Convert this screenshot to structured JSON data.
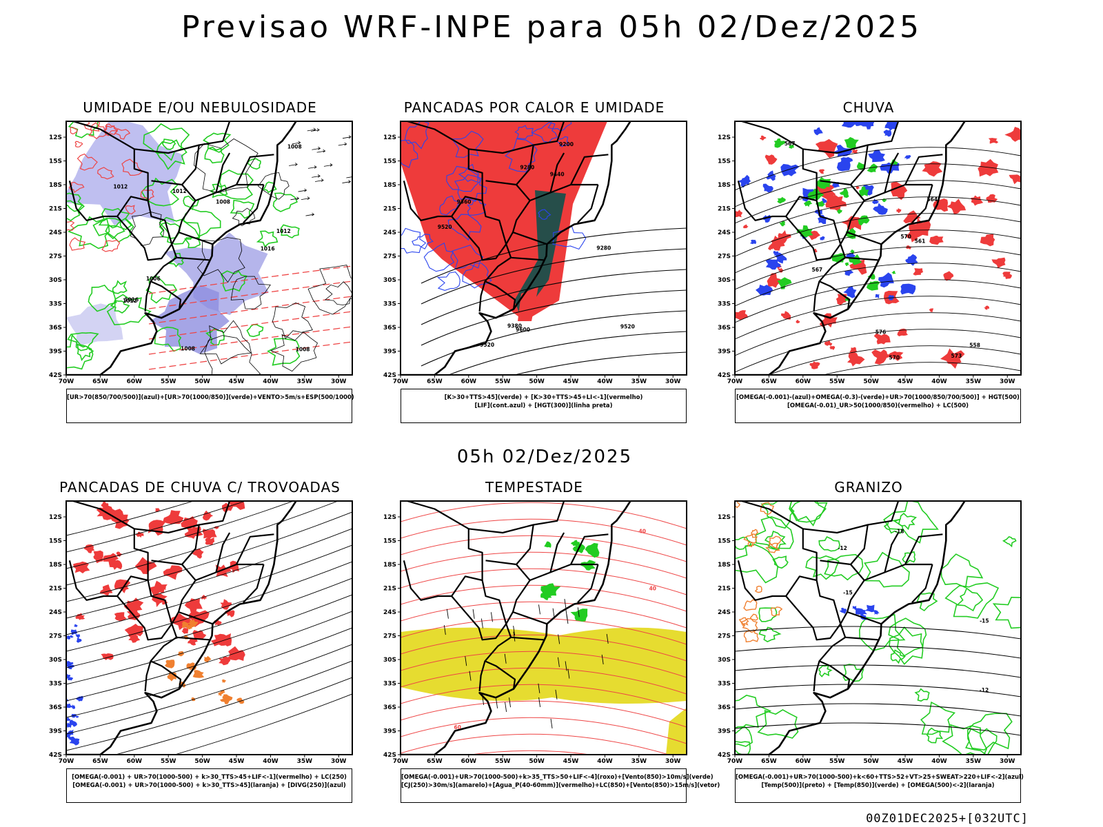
{
  "header": {
    "title": "Previsao WRF-INPE  para 05h 02/Dez/2025",
    "mid_title": "05h 02/Dez/2025"
  },
  "footer": "00Z01DEC2025+[032UTC]",
  "axes": {
    "lat_ticks": [
      "12S",
      "15S",
      "18S",
      "21S",
      "24S",
      "27S",
      "30S",
      "33S",
      "36S",
      "39S",
      "42S"
    ],
    "lon_ticks": [
      "70W",
      "65W",
      "60W",
      "55W",
      "50W",
      "45W",
      "40W",
      "35W",
      "30W"
    ]
  },
  "chart_data": [
    {
      "type": "heatmap",
      "id": "p1",
      "title": "UMIDADE E/OU NEBULOSIDADE",
      "legend": [
        "[UR>70(850/700/500)](azul)+[UR>70(1000/850)](verde)+VENTO>5m/s+ESP(500/1000)"
      ],
      "xlim": [
        -70,
        -28
      ],
      "ylim": [
        -42,
        -10
      ],
      "contour_labels": [
        "1012",
        "1008",
        "1008",
        "1012",
        "1016",
        "1006",
        "1008",
        "1008",
        "1012",
        "1012",
        "1016"
      ]
    },
    {
      "type": "heatmap",
      "id": "p2",
      "title": "PANCADAS POR CALOR E UMIDADE",
      "legend": [
        "[K>30+TTS>45](verde) + [K>30+TTS>45+LI<-1](vermelho)",
        "[LIF](cont.azul) + [HGT(300)](linha preta)"
      ],
      "xlim": [
        -70,
        -28
      ],
      "ylim": [
        -42,
        -10
      ],
      "contour_labels": [
        "9600",
        "9520",
        "9520",
        "9520",
        "9440",
        "9360",
        "9280",
        "9200",
        "9380",
        "9280"
      ]
    },
    {
      "type": "heatmap",
      "id": "p3",
      "title": "CHUVA",
      "legend": [
        "[OMEGA(-0.001)-(azul)+OMEGA(-0.3)-(verde)+UR>70(1000/850/700/500)] + HGT(500)",
        "[OMEGA(-0.01)_UR>50(1000/850)(vermelho) + LC(500)"
      ],
      "xlim": [
        -70,
        -28
      ],
      "ylim": [
        -42,
        -10
      ],
      "contour_labels": [
        "576",
        "573",
        "570",
        "567",
        "564",
        "561",
        "558",
        "570",
        "567"
      ]
    },
    {
      "type": "heatmap",
      "id": "p4",
      "title": "PANCADAS DE CHUVA C/ TROVOADAS",
      "legend": [
        "[OMEGA(-0.001) + UR>70(1000-500) + k>30_TTS>45+LIF<-1](vermelho) + LC(250)",
        "[OMEGA(-0.001) + UR>70(1000-500) + k>30_TTS>45](laranja) + [DIVG(250)](azul)"
      ],
      "xlim": [
        -70,
        -28
      ],
      "ylim": [
        -42,
        -10
      ],
      "contour_labels": []
    },
    {
      "type": "heatmap",
      "id": "p5",
      "title": "TEMPESTADE",
      "legend": [
        "[OMEGA(-0.001)+UR>70(1000-500)+k>35_TTS>50+LIF<-4](roxo)+[Vento(850)>10m/s](verde)",
        "[CJ(250)>30m/s](amarelo)+[Agua_P(40-60mm)](vermelho)+LC(850)+[Vento(850)>15m/s](vetor)"
      ],
      "xlim": [
        -70,
        -28
      ],
      "ylim": [
        -42,
        -10
      ],
      "contour_labels": [
        "40",
        "40",
        "60"
      ]
    },
    {
      "type": "heatmap",
      "id": "p6",
      "title": "GRANIZO",
      "legend": [
        "[OMEGA(-0.001)+UR>70(1000-500)+k<60+TTS>52+VT>25+SWEAT>220+LIF<-2](azul)",
        "[Temp(500)](preto) + [Temp(850)](verde) + [OMEGA(500)<-2](laranja)"
      ],
      "xlim": [
        -70,
        -28
      ],
      "ylim": [
        -42,
        -10
      ],
      "contour_labels": [
        "-12",
        "-12",
        "-15",
        "-15",
        "-18"
      ]
    }
  ]
}
